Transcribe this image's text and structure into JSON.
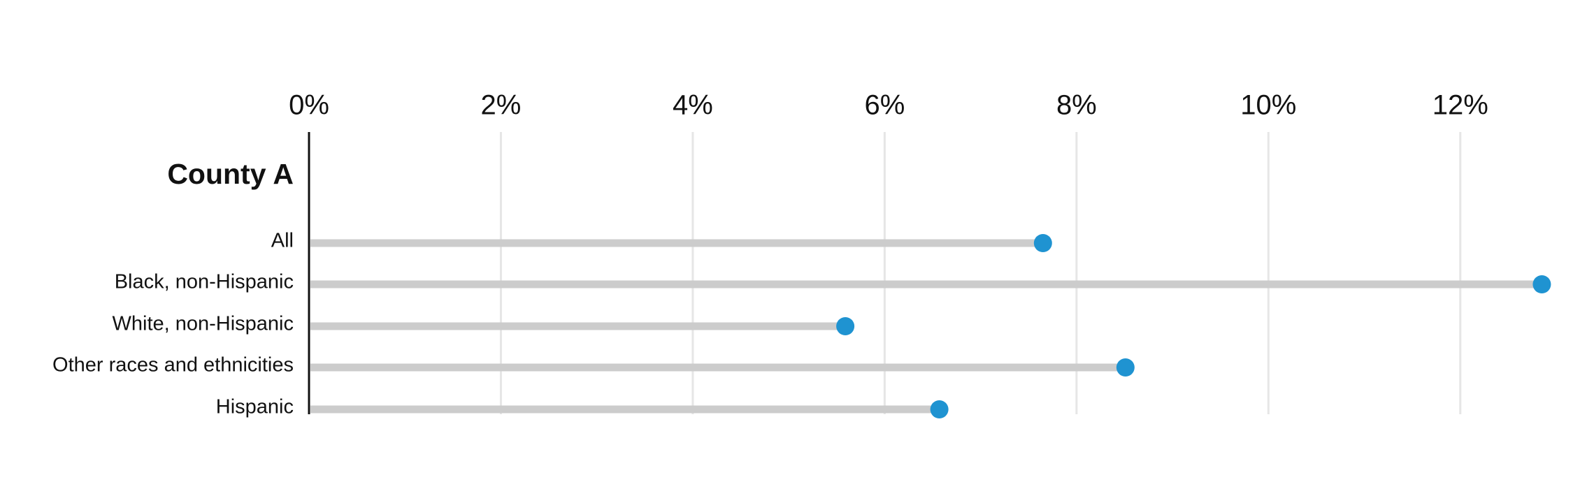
{
  "chart_data": {
    "type": "lollipop",
    "group_label": "County A",
    "categories": [
      "All",
      "Black, non-Hispanic",
      "White, non-Hispanic",
      "Other races and ethnicities",
      "Hispanic"
    ],
    "values": [
      7.65,
      12.85,
      5.59,
      8.51,
      6.57
    ],
    "color": "#1f93d1",
    "stem_color": "#cccccc",
    "xlim": [
      0,
      13
    ],
    "xticks": [
      {
        "value": 0,
        "label": "0%"
      },
      {
        "value": 2,
        "label": "2%"
      },
      {
        "value": 4,
        "label": "4%"
      },
      {
        "value": 6,
        "label": "6%"
      },
      {
        "value": 8,
        "label": "8%"
      },
      {
        "value": 10,
        "label": "10%"
      },
      {
        "value": 12,
        "label": "12%"
      }
    ],
    "grid": true
  }
}
